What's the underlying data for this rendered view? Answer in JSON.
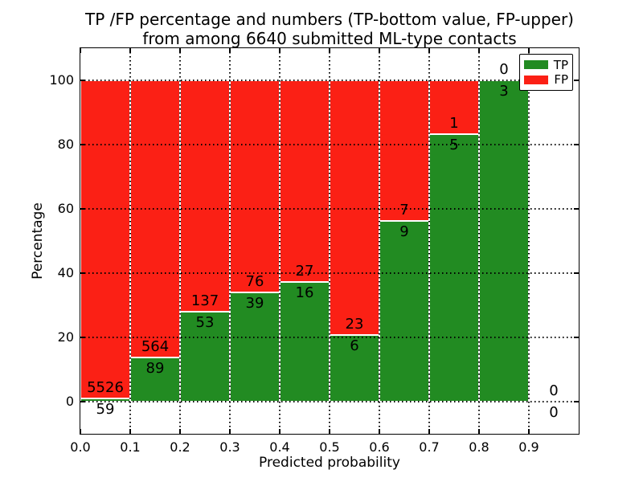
{
  "title": {
    "line1": "TP /FP percentage and numbers (TP-bottom value, FP-upper)",
    "line2": "from among 6640 submitted ML-type contacts"
  },
  "chart_data": {
    "type": "bar",
    "variant": "stacked-percentage-histogram",
    "title": "TP /FP percentage and numbers (TP-bottom value, FP-upper)\nfrom among 6640 submitted ML-type contacts",
    "xlabel": "Predicted probability",
    "ylabel": "Percentage",
    "xlim": [
      0.0,
      1.0
    ],
    "ylim": [
      -10,
      110
    ],
    "bin_width": 0.1,
    "x_tick_values": [
      0.0,
      0.1,
      0.2,
      0.3,
      0.4,
      0.5,
      0.6,
      0.7,
      0.8,
      0.9
    ],
    "x_tick_labels": [
      "0.0",
      "0.1",
      "0.2",
      "0.3",
      "0.4",
      "0.5",
      "0.6",
      "0.7",
      "0.8",
      "0.9"
    ],
    "y_tick_values": [
      0,
      20,
      40,
      60,
      80,
      100
    ],
    "y_tick_labels": [
      "0",
      "20",
      "40",
      "60",
      "80",
      "100"
    ],
    "grid": {
      "style": "dotted",
      "color": "#000000",
      "drawn_above_bars": true
    },
    "categories": [
      "0.0-0.1",
      "0.1-0.2",
      "0.2-0.3",
      "0.3-0.4",
      "0.4-0.5",
      "0.5-0.6",
      "0.6-0.7",
      "0.7-0.8",
      "0.8-0.9",
      "0.9-1.0"
    ],
    "series": [
      {
        "name": "TP",
        "color": "#228b22",
        "counts": [
          59,
          89,
          53,
          39,
          16,
          6,
          9,
          5,
          3,
          0
        ],
        "pct": [
          1.1,
          13.6,
          27.9,
          33.9,
          37.2,
          20.7,
          56.3,
          83.3,
          100.0,
          null
        ]
      },
      {
        "name": "FP",
        "color": "#fb2015",
        "counts": [
          5526,
          564,
          137,
          76,
          27,
          23,
          7,
          1,
          0,
          0
        ],
        "pct": [
          98.9,
          86.4,
          72.1,
          66.1,
          62.8,
          79.3,
          43.7,
          16.7,
          0.0,
          null
        ]
      }
    ],
    "total_contacts": 6640,
    "legend": {
      "position": "upper right",
      "entries": [
        "TP",
        "FP"
      ]
    },
    "annotation_rule": "FP count printed above TP/FP boundary, TP count printed below it"
  },
  "colors": {
    "tp_green": "#228b22",
    "fp_red": "#fb2015",
    "text": "#000000",
    "background": "#ffffff"
  }
}
